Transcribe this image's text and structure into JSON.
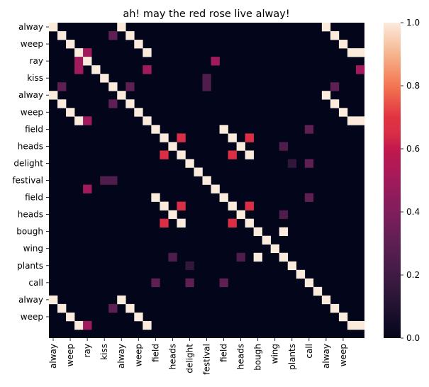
{
  "chart_data": {
    "type": "heatmap",
    "title": "ah! may the red rose live alway!",
    "xlabel": "",
    "ylabel": "",
    "tokens": [
      "alway",
      "!",
      "weep",
      "!",
      "ray",
      "!",
      "kiss",
      "!",
      "alway",
      "!",
      "weep",
      "!",
      "field",
      "!",
      "heads",
      "!",
      "delight",
      "!",
      "festival",
      "!",
      "field",
      "!",
      "heads",
      "!",
      "bough",
      "!",
      "wing",
      "!",
      "plants",
      "!",
      "call",
      "!",
      "alway",
      "!",
      "weep",
      "!",
      "!"
    ],
    "x_tick_labels": [
      "alway",
      "weep",
      "ray",
      "kiss",
      "alway",
      "weep",
      "field",
      "heads",
      "delight",
      "festival",
      "field",
      "heads",
      "bough",
      "wing",
      "plants",
      "call",
      "alway",
      "weep"
    ],
    "y_tick_labels": [
      "alway",
      "weep",
      "ray",
      "kiss",
      "alway",
      "weep",
      "field",
      "heads",
      "delight",
      "festival",
      "field",
      "heads",
      "bough",
      "wing",
      "plants",
      "call",
      "alway",
      "weep"
    ],
    "value_range": [
      0,
      1
    ],
    "colorbar_ticks": [
      0.0,
      0.2,
      0.4,
      0.6,
      0.8,
      1.0
    ],
    "colorbar_tick_labels": [
      "0.0",
      "0.2",
      "0.4",
      "0.6",
      "0.8",
      "1.0"
    ],
    "colormap": "rocket",
    "grid": false,
    "cells": [
      [
        0,
        0,
        1
      ],
      [
        0,
        8,
        1
      ],
      [
        0,
        32,
        1
      ],
      [
        1,
        1,
        1
      ],
      [
        1,
        7,
        0.3
      ],
      [
        1,
        9,
        1
      ],
      [
        1,
        33,
        1
      ],
      [
        2,
        2,
        1
      ],
      [
        2,
        10,
        1
      ],
      [
        2,
        34,
        1
      ],
      [
        3,
        3,
        1
      ],
      [
        3,
        4,
        0.5
      ],
      [
        3,
        11,
        1
      ],
      [
        3,
        35,
        1
      ],
      [
        3,
        36,
        1
      ],
      [
        4,
        3,
        0.5
      ],
      [
        4,
        4,
        1
      ],
      [
        4,
        19,
        0.5
      ],
      [
        5,
        3,
        0.5
      ],
      [
        5,
        5,
        1
      ],
      [
        5,
        11,
        0.5
      ],
      [
        5,
        36,
        0.5
      ],
      [
        6,
        6,
        1
      ],
      [
        6,
        18,
        0.25
      ],
      [
        7,
        1,
        0.3
      ],
      [
        7,
        7,
        1
      ],
      [
        7,
        9,
        0.3
      ],
      [
        7,
        18,
        0.25
      ],
      [
        7,
        33,
        0.3
      ],
      [
        8,
        0,
        1
      ],
      [
        8,
        8,
        1
      ],
      [
        8,
        32,
        1
      ],
      [
        9,
        1,
        1
      ],
      [
        9,
        7,
        0.3
      ],
      [
        9,
        9,
        1
      ],
      [
        9,
        33,
        1
      ],
      [
        10,
        2,
        1
      ],
      [
        10,
        10,
        1
      ],
      [
        10,
        34,
        1
      ],
      [
        11,
        3,
        1
      ],
      [
        11,
        4,
        0.5
      ],
      [
        11,
        11,
        1
      ],
      [
        11,
        35,
        1
      ],
      [
        11,
        36,
        1
      ],
      [
        12,
        12,
        1
      ],
      [
        12,
        20,
        1
      ],
      [
        12,
        30,
        0.3
      ],
      [
        13,
        13,
        1
      ],
      [
        13,
        15,
        0.65
      ],
      [
        13,
        21,
        1
      ],
      [
        13,
        23,
        0.65
      ],
      [
        14,
        14,
        1
      ],
      [
        14,
        22,
        1
      ],
      [
        14,
        27,
        0.25
      ],
      [
        15,
        13,
        0.65
      ],
      [
        15,
        15,
        1
      ],
      [
        15,
        21,
        0.65
      ],
      [
        15,
        23,
        1
      ],
      [
        16,
        16,
        1
      ],
      [
        16,
        28,
        0.15
      ],
      [
        16,
        30,
        0.3
      ],
      [
        17,
        17,
        1
      ],
      [
        18,
        6,
        0.25
      ],
      [
        18,
        7,
        0.25
      ],
      [
        18,
        18,
        1
      ],
      [
        19,
        4,
        0.5
      ],
      [
        19,
        19,
        1
      ],
      [
        20,
        12,
        1
      ],
      [
        20,
        20,
        1
      ],
      [
        20,
        30,
        0.3
      ],
      [
        21,
        13,
        1
      ],
      [
        21,
        15,
        0.65
      ],
      [
        21,
        21,
        1
      ],
      [
        21,
        23,
        0.65
      ],
      [
        22,
        14,
        1
      ],
      [
        22,
        22,
        1
      ],
      [
        22,
        27,
        0.25
      ],
      [
        23,
        13,
        0.65
      ],
      [
        23,
        15,
        1
      ],
      [
        23,
        21,
        0.65
      ],
      [
        23,
        23,
        1
      ],
      [
        24,
        24,
        1
      ],
      [
        24,
        27,
        1
      ],
      [
        25,
        25,
        1
      ],
      [
        26,
        26,
        1
      ],
      [
        27,
        14,
        0.25
      ],
      [
        27,
        22,
        0.25
      ],
      [
        27,
        24,
        1
      ],
      [
        27,
        27,
        1
      ],
      [
        28,
        16,
        0.15
      ],
      [
        28,
        28,
        1
      ],
      [
        29,
        29,
        1
      ],
      [
        30,
        12,
        0.3
      ],
      [
        30,
        16,
        0.3
      ],
      [
        30,
        20,
        0.3
      ],
      [
        30,
        30,
        1
      ],
      [
        31,
        31,
        1
      ],
      [
        32,
        0,
        1
      ],
      [
        32,
        8,
        1
      ],
      [
        32,
        32,
        1
      ],
      [
        33,
        1,
        1
      ],
      [
        33,
        7,
        0.3
      ],
      [
        33,
        9,
        1
      ],
      [
        33,
        33,
        1
      ],
      [
        34,
        2,
        1
      ],
      [
        34,
        10,
        1
      ],
      [
        34,
        34,
        1
      ],
      [
        35,
        3,
        1
      ],
      [
        35,
        4,
        0.5
      ],
      [
        35,
        11,
        1
      ],
      [
        35,
        35,
        1
      ],
      [
        35,
        36,
        1
      ]
    ]
  }
}
